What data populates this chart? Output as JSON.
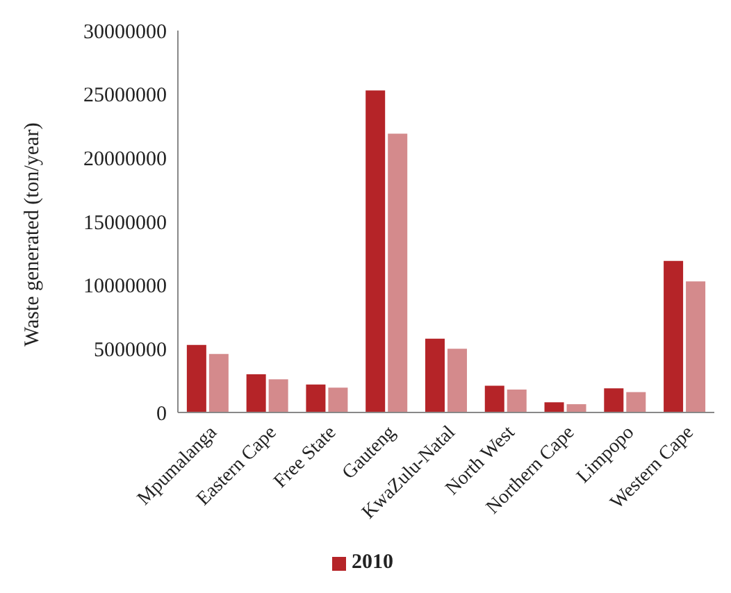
{
  "chart_data": {
    "type": "bar",
    "ylabel": "Waste generated (ton/year)",
    "categories": [
      "Mpumalanga",
      "Eastern Cape",
      "Free State",
      "Gauteng",
      "KwaZulu-Natal",
      "North West",
      "Northern Cape",
      "Limpopo",
      "Western Cape"
    ],
    "series": [
      {
        "name": "2010",
        "color": "#b52428",
        "values": [
          5300000,
          3000000,
          2200000,
          25300000,
          5800000,
          2100000,
          800000,
          1900000,
          11900000
        ]
      },
      {
        "color": "#d48a8c",
        "values": [
          4600000,
          2600000,
          1950000,
          21900000,
          5000000,
          1800000,
          650000,
          1600000,
          10300000
        ]
      }
    ],
    "ylim": [
      0,
      30000000
    ],
    "yticks": [
      0,
      5000000,
      10000000,
      15000000,
      20000000,
      25000000,
      30000000
    ],
    "grid": false,
    "legend": "bottom"
  }
}
